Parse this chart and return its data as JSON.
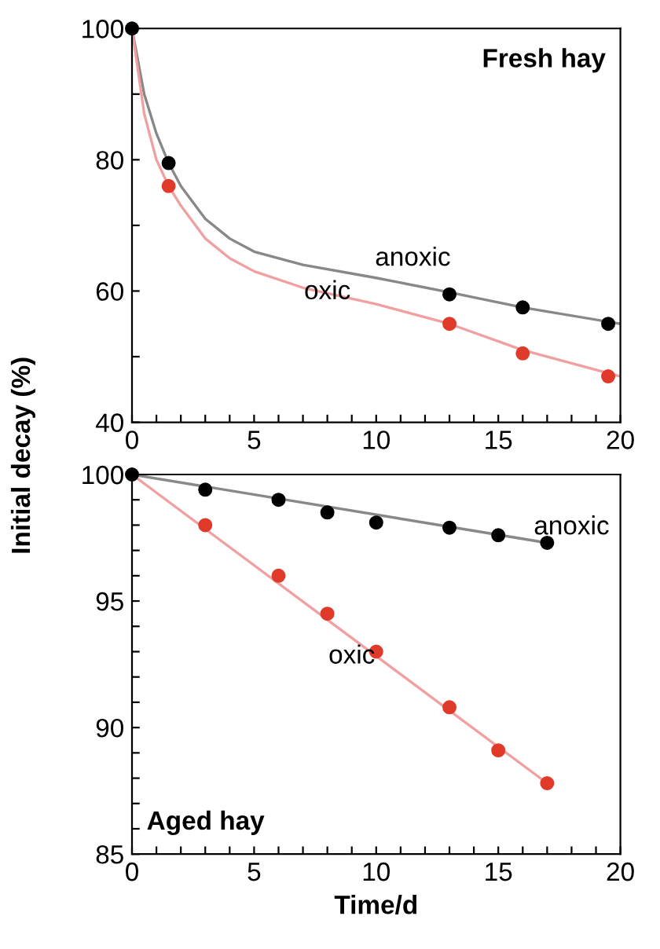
{
  "chart_data": [
    {
      "type": "scatter",
      "title": "Fresh hay",
      "ylabel": "Initial decay (%)",
      "xlim": [
        0,
        20
      ],
      "ylim": [
        40,
        100
      ],
      "xticks": [
        0,
        {
          "value": 1,
          "label": null
        },
        {
          "value": 2,
          "label": null
        },
        {
          "value": 3,
          "label": null
        },
        {
          "value": 4,
          "label": null
        },
        5,
        {
          "value": 6,
          "label": null
        },
        {
          "value": 7,
          "label": null
        },
        {
          "value": 8,
          "label": null
        },
        {
          "value": 9,
          "label": null
        },
        10,
        {
          "value": 11,
          "label": null
        },
        {
          "value": 12,
          "label": null
        },
        {
          "value": 13,
          "label": null
        },
        {
          "value": 14,
          "label": null
        },
        15,
        {
          "value": 16,
          "label": null
        },
        {
          "value": 17,
          "label": null
        },
        {
          "value": 18,
          "label": null
        },
        {
          "value": 19,
          "label": null
        },
        20
      ],
      "yticks": [
        40,
        {
          "value": 50,
          "label": null
        },
        60,
        {
          "value": 70,
          "label": null
        },
        80,
        {
          "value": 90,
          "label": null
        },
        100
      ],
      "grid": false,
      "series": [
        {
          "type": "line",
          "marker": "none",
          "color": "#888888",
          "x": [
            0,
            0.5,
            1,
            1.5,
            2,
            3,
            4,
            5,
            7,
            10,
            13,
            16,
            20
          ],
          "values": [
            100,
            90,
            84,
            79.5,
            76,
            71,
            68,
            66,
            64,
            62,
            59.8,
            57.5,
            55
          ]
        },
        {
          "type": "line",
          "marker": "none",
          "color": "#f0a0a0",
          "x": [
            0,
            0.5,
            1,
            1.5,
            2,
            3,
            4,
            5,
            7,
            10,
            13,
            16,
            20
          ],
          "values": [
            100,
            87,
            80,
            76,
            73,
            68,
            65,
            63,
            60.5,
            58,
            55,
            51,
            47
          ]
        },
        {
          "marker": "circle",
          "color": "#000000",
          "x": [
            0,
            1.5,
            13,
            16,
            19.5
          ],
          "values": [
            100,
            79.5,
            59.5,
            57.5,
            55
          ]
        },
        {
          "marker": "circle",
          "color": "#e03a2a",
          "x": [
            1.5,
            13,
            16,
            19.5
          ],
          "values": [
            76,
            55,
            50.5,
            47
          ]
        }
      ],
      "annotations": [
        "anoxic",
        "oxic"
      ]
    },
    {
      "type": "scatter",
      "title": "Aged hay",
      "xlabel": "Time/d",
      "xlim": [
        0,
        20
      ],
      "ylim": [
        85,
        100
      ],
      "xticks": [
        0,
        {
          "value": 1,
          "label": null
        },
        {
          "value": 2,
          "label": null
        },
        {
          "value": 3,
          "label": null
        },
        {
          "value": 4,
          "label": null
        },
        5,
        {
          "value": 6,
          "label": null
        },
        {
          "value": 7,
          "label": null
        },
        {
          "value": 8,
          "label": null
        },
        {
          "value": 9,
          "label": null
        },
        10,
        {
          "value": 11,
          "label": null
        },
        {
          "value": 12,
          "label": null
        },
        {
          "value": 13,
          "label": null
        },
        {
          "value": 14,
          "label": null
        },
        15,
        {
          "value": 16,
          "label": null
        },
        {
          "value": 17,
          "label": null
        },
        {
          "value": 18,
          "label": null
        },
        {
          "value": 19,
          "label": null
        },
        20
      ],
      "yticks": [
        85,
        {
          "value": 86,
          "label": null
        },
        {
          "value": 87,
          "label": null
        },
        {
          "value": 88,
          "label": null
        },
        {
          "value": 89,
          "label": null
        },
        90,
        {
          "value": 91,
          "label": null
        },
        {
          "value": 92,
          "label": null
        },
        {
          "value": 93,
          "label": null
        },
        {
          "value": 94,
          "label": null
        },
        95,
        {
          "value": 96,
          "label": null
        },
        {
          "value": 97,
          "label": null
        },
        {
          "value": 98,
          "label": null
        },
        {
          "value": 99,
          "label": null
        },
        100
      ],
      "grid": false,
      "series": [
        {
          "type": "line",
          "marker": "none",
          "color": "#888888",
          "x": [
            0,
            17
          ],
          "values": [
            100,
            97.3
          ]
        },
        {
          "type": "line",
          "marker": "none",
          "color": "#f0a0a0",
          "x": [
            0,
            17
          ],
          "values": [
            100,
            87.8
          ]
        },
        {
          "marker": "circle",
          "color": "#000000",
          "x": [
            0,
            3,
            6,
            8,
            10,
            13,
            15,
            17
          ],
          "values": [
            100,
            99.4,
            99.0,
            98.5,
            98.1,
            97.9,
            97.6,
            97.3
          ]
        },
        {
          "marker": "circle",
          "color": "#e03a2a",
          "x": [
            3,
            6,
            8,
            10,
            13,
            15,
            17
          ],
          "values": [
            98.0,
            96.0,
            94.5,
            93.0,
            90.8,
            89.1,
            87.8
          ]
        }
      ],
      "annotations": [
        "anoxic",
        "oxic"
      ]
    }
  ]
}
